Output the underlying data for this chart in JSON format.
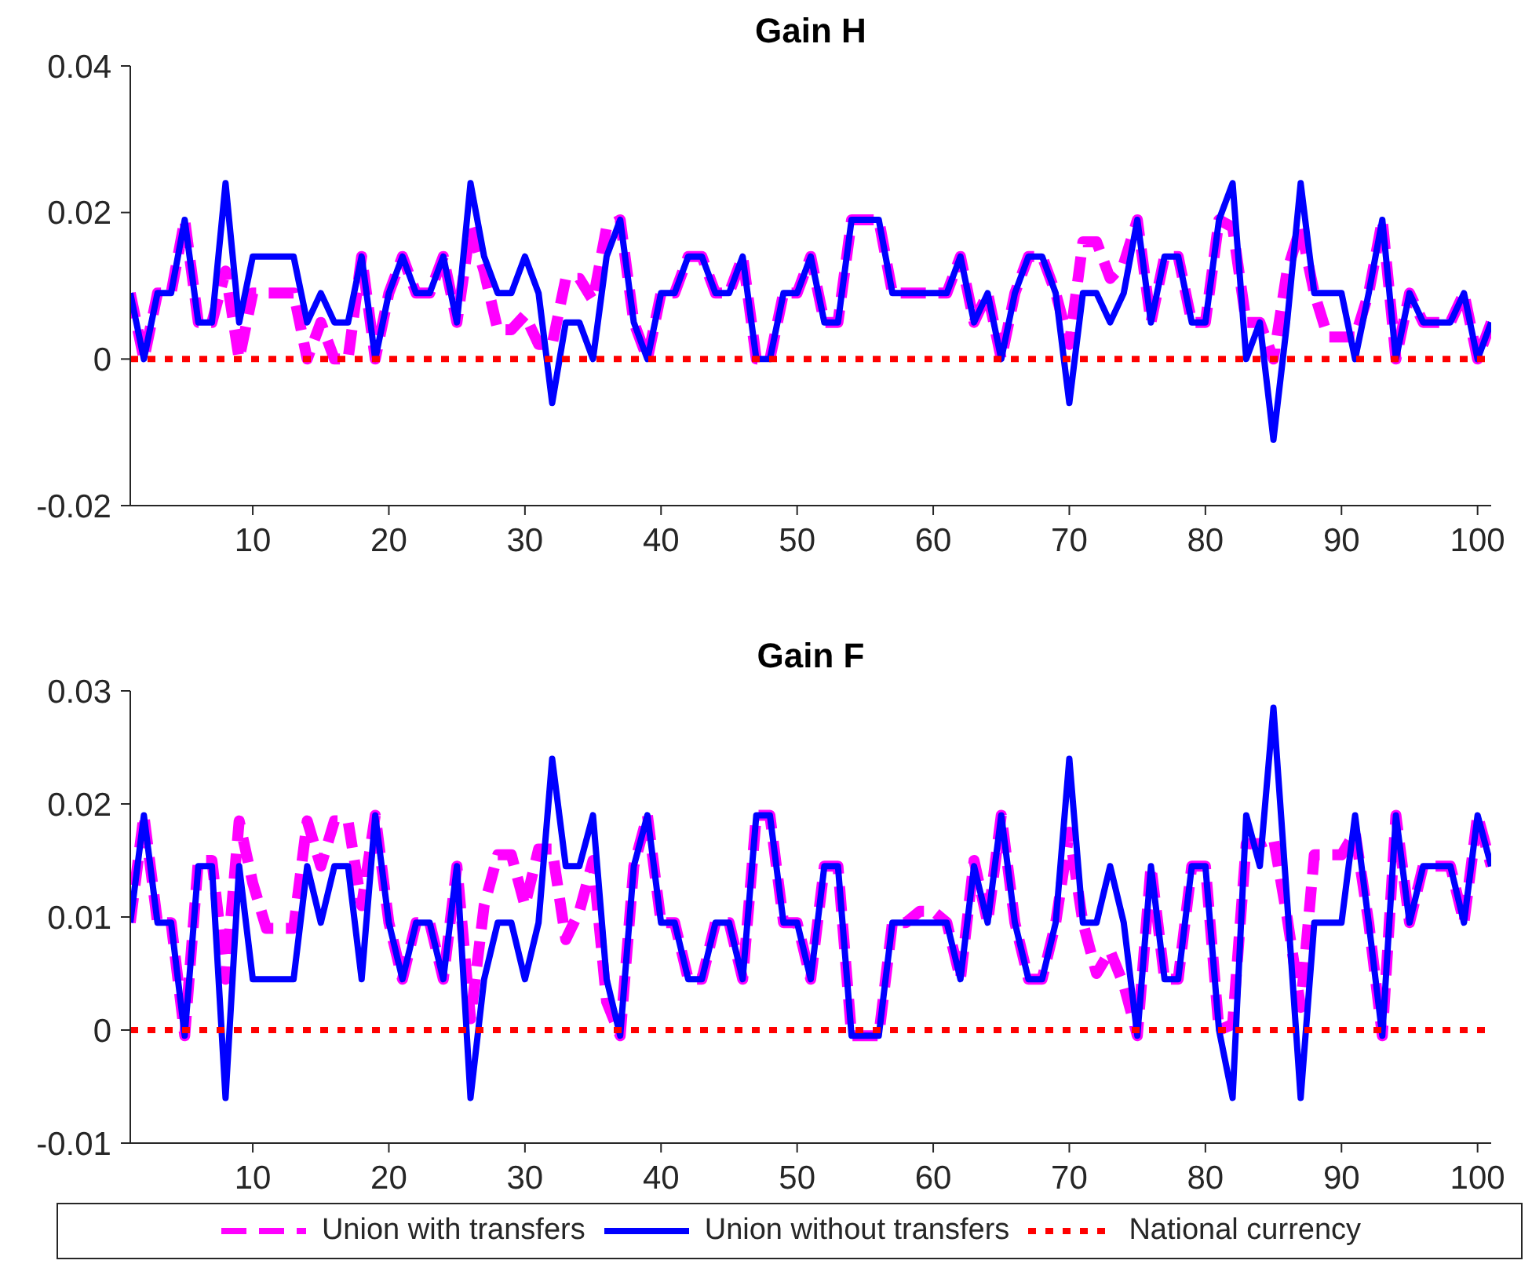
{
  "chart_data": [
    {
      "type": "line",
      "title": "Gain H",
      "legend": false,
      "grid": false,
      "marker": "none",
      "xlim": [
        1,
        101
      ],
      "xticks": [
        10,
        20,
        30,
        40,
        50,
        60,
        70,
        80,
        90,
        100
      ],
      "ylim": [
        -0.02,
        0.04
      ],
      "yticks": [
        -0.02,
        0,
        0.02,
        0.04
      ],
      "x": [
        1,
        2,
        3,
        4,
        5,
        6,
        7,
        8,
        9,
        10,
        11,
        12,
        13,
        14,
        15,
        16,
        17,
        18,
        19,
        20,
        21,
        22,
        23,
        24,
        25,
        26,
        27,
        28,
        29,
        30,
        31,
        32,
        33,
        34,
        35,
        36,
        37,
        38,
        39,
        40,
        41,
        42,
        43,
        44,
        45,
        46,
        47,
        48,
        49,
        50,
        51,
        52,
        53,
        54,
        55,
        56,
        57,
        58,
        59,
        60,
        61,
        62,
        63,
        64,
        65,
        66,
        67,
        68,
        69,
        70,
        71,
        72,
        73,
        74,
        75,
        76,
        77,
        78,
        79,
        80,
        81,
        82,
        83,
        84,
        85,
        86,
        87,
        88,
        89,
        90,
        91,
        92,
        93,
        94,
        95,
        96,
        97,
        98,
        99,
        100,
        101
      ],
      "series": [
        {
          "color": "#ff00ff",
          "line_style": "dashed",
          "values": [
            0.009,
            0,
            0.009,
            0.009,
            0.019,
            0.005,
            0.005,
            0.012,
            0,
            0.009,
            0.009,
            0.009,
            0.009,
            0,
            0.005,
            0,
            0,
            0.014,
            0,
            0.009,
            0.014,
            0.009,
            0.009,
            0.014,
            0.005,
            0.018,
            0.012,
            0.004,
            0.004,
            0.006,
            0.002,
            0.002,
            0.011,
            0.011,
            0.008,
            0.018,
            0.019,
            0.005,
            0,
            0.009,
            0.009,
            0.014,
            0.014,
            0.009,
            0.009,
            0.014,
            0,
            0,
            0.009,
            0.009,
            0.014,
            0.005,
            0.005,
            0.019,
            0.019,
            0.019,
            0.009,
            0.009,
            0.009,
            0.009,
            0.009,
            0.014,
            0.005,
            0.009,
            0,
            0.009,
            0.014,
            0.014,
            0.009,
            0.002,
            0.016,
            0.016,
            0.011,
            0.013,
            0.019,
            0.005,
            0.014,
            0.014,
            0.005,
            0.005,
            0.019,
            0.018,
            0.005,
            0.005,
            0,
            0.012,
            0.018,
            0.009,
            0.003,
            0.003,
            0.003,
            0.009,
            0.019,
            0,
            0.009,
            0.005,
            0.005,
            0.005,
            0.009,
            0,
            0.005
          ]
        },
        {
          "color": "#0000ff",
          "line_style": "solid",
          "values": [
            0.009,
            0,
            0.009,
            0.009,
            0.019,
            0.005,
            0.005,
            0.024,
            0.005,
            0.014,
            0.014,
            0.014,
            0.014,
            0.005,
            0.009,
            0.005,
            0.005,
            0.014,
            0,
            0.009,
            0.014,
            0.009,
            0.009,
            0.014,
            0.005,
            0.024,
            0.014,
            0.009,
            0.009,
            0.014,
            0.009,
            -0.006,
            0.005,
            0.005,
            0,
            0.014,
            0.019,
            0.005,
            0,
            0.009,
            0.009,
            0.014,
            0.014,
            0.009,
            0.009,
            0.014,
            0,
            0,
            0.009,
            0.009,
            0.014,
            0.005,
            0.005,
            0.019,
            0.019,
            0.019,
            0.009,
            0.009,
            0.009,
            0.009,
            0.009,
            0.014,
            0.005,
            0.009,
            0,
            0.009,
            0.014,
            0.014,
            0.009,
            -0.006,
            0.009,
            0.009,
            0.005,
            0.009,
            0.019,
            0.005,
            0.014,
            0.014,
            0.005,
            0.005,
            0.019,
            0.024,
            0,
            0.005,
            -0.011,
            0.005,
            0.024,
            0.009,
            0.009,
            0.009,
            0,
            0.009,
            0.019,
            0,
            0.009,
            0.005,
            0.005,
            0.005,
            0.009,
            0,
            0.005
          ]
        },
        {
          "color": "#ff0000",
          "line_style": "dotted",
          "values": [
            0,
            0,
            0,
            0,
            0,
            0,
            0,
            0,
            0,
            0,
            0,
            0,
            0,
            0,
            0,
            0,
            0,
            0,
            0,
            0,
            0,
            0,
            0,
            0,
            0,
            0,
            0,
            0,
            0,
            0,
            0,
            0,
            0,
            0,
            0,
            0,
            0,
            0,
            0,
            0,
            0,
            0,
            0,
            0,
            0,
            0,
            0,
            0,
            0,
            0,
            0,
            0,
            0,
            0,
            0,
            0,
            0,
            0,
            0,
            0,
            0,
            0,
            0,
            0,
            0,
            0,
            0,
            0,
            0,
            0,
            0,
            0,
            0,
            0,
            0,
            0,
            0,
            0,
            0,
            0,
            0,
            0,
            0,
            0,
            0,
            0,
            0,
            0,
            0,
            0,
            0,
            0,
            0,
            0,
            0,
            0,
            0,
            0,
            0,
            0,
            0
          ]
        }
      ]
    },
    {
      "type": "line",
      "title": "Gain F",
      "legend": "bottom",
      "grid": false,
      "marker": "none",
      "xlim": [
        1,
        101
      ],
      "xticks": [
        10,
        20,
        30,
        40,
        50,
        60,
        70,
        80,
        90,
        100
      ],
      "ylim": [
        -0.01,
        0.03
      ],
      "yticks": [
        -0.01,
        0,
        0.01,
        0.02,
        0.03
      ],
      "x": [
        1,
        2,
        3,
        4,
        5,
        6,
        7,
        8,
        9,
        10,
        11,
        12,
        13,
        14,
        15,
        16,
        17,
        18,
        19,
        20,
        21,
        22,
        23,
        24,
        25,
        26,
        27,
        28,
        29,
        30,
        31,
        32,
        33,
        34,
        35,
        36,
        37,
        38,
        39,
        40,
        41,
        42,
        43,
        44,
        45,
        46,
        47,
        48,
        49,
        50,
        51,
        52,
        53,
        54,
        55,
        56,
        57,
        58,
        59,
        60,
        61,
        62,
        63,
        64,
        65,
        66,
        67,
        68,
        69,
        70,
        71,
        72,
        73,
        74,
        75,
        76,
        77,
        78,
        79,
        80,
        81,
        82,
        83,
        84,
        85,
        86,
        87,
        88,
        89,
        90,
        91,
        92,
        93,
        94,
        95,
        96,
        97,
        98,
        99,
        100,
        101
      ],
      "series": [
        {
          "name": "Union with transfers",
          "color": "#ff00ff",
          "line_style": "dashed",
          "values": [
            0.0095,
            0.019,
            0.0095,
            0.0095,
            -0.0005,
            0.015,
            0.015,
            0.0045,
            0.0185,
            0.013,
            0.009,
            0.009,
            0.009,
            0.0185,
            0.0145,
            0.0185,
            0.0185,
            0.011,
            0.019,
            0.0095,
            0.0045,
            0.0095,
            0.0095,
            0.0045,
            0.0145,
            0.001,
            0.011,
            0.0155,
            0.0155,
            0.011,
            0.016,
            0.016,
            0.008,
            0.0105,
            0.015,
            0.0025,
            -0.0005,
            0.0145,
            0.019,
            0.0095,
            0.0095,
            0.0045,
            0.0045,
            0.0095,
            0.0095,
            0.0045,
            0.019,
            0.019,
            0.0095,
            0.0095,
            0.0045,
            0.0145,
            0.0145,
            -0.0005,
            -0.0005,
            -0.0005,
            0.0095,
            0.0095,
            0.0105,
            0.0105,
            0.0095,
            0.0045,
            0.015,
            0.0095,
            0.019,
            0.0095,
            0.0045,
            0.0045,
            0.0095,
            0.0175,
            0.0095,
            0.005,
            0.007,
            0.004,
            -0.0005,
            0.0145,
            0.0045,
            0.0045,
            0.0145,
            0.0145,
            0,
            0.0005,
            0.0165,
            0.0165,
            0.017,
            0.01,
            0.002,
            0.0155,
            0.0155,
            0.0155,
            0.0175,
            0.0095,
            -0.0005,
            0.019,
            0.0095,
            0.0145,
            0.0145,
            0.0145,
            0.0095,
            0.019,
            0.0145
          ]
        },
        {
          "name": "Union without transfers",
          "color": "#0000ff",
          "line_style": "solid",
          "values": [
            0.0095,
            0.019,
            0.0095,
            0.0095,
            -0.0005,
            0.0145,
            0.0145,
            -0.006,
            0.0145,
            0.0045,
            0.0045,
            0.0045,
            0.0045,
            0.0145,
            0.0095,
            0.0145,
            0.0145,
            0.0045,
            0.019,
            0.0095,
            0.0045,
            0.0095,
            0.0095,
            0.0045,
            0.0145,
            -0.006,
            0.0045,
            0.0095,
            0.0095,
            0.0045,
            0.0095,
            0.024,
            0.0145,
            0.0145,
            0.019,
            0.0045,
            -0.0005,
            0.0145,
            0.019,
            0.0095,
            0.0095,
            0.0045,
            0.0045,
            0.0095,
            0.0095,
            0.0045,
            0.019,
            0.019,
            0.0095,
            0.0095,
            0.0045,
            0.0145,
            0.0145,
            -0.0005,
            -0.0005,
            -0.0005,
            0.0095,
            0.0095,
            0.0095,
            0.0095,
            0.0095,
            0.0045,
            0.0145,
            0.0095,
            0.019,
            0.0095,
            0.0045,
            0.0045,
            0.0095,
            0.024,
            0.0095,
            0.0095,
            0.0145,
            0.0095,
            -0.0005,
            0.0145,
            0.0045,
            0.0045,
            0.0145,
            0.0145,
            0,
            -0.006,
            0.019,
            0.0145,
            0.0285,
            0.0115,
            -0.006,
            0.0095,
            0.0095,
            0.0095,
            0.019,
            0.0095,
            -0.0005,
            0.019,
            0.0095,
            0.0145,
            0.0145,
            0.0145,
            0.0095,
            0.019,
            0.0145
          ]
        },
        {
          "name": "National currency",
          "color": "#ff0000",
          "line_style": "dotted",
          "values": [
            0,
            0,
            0,
            0,
            0,
            0,
            0,
            0,
            0,
            0,
            0,
            0,
            0,
            0,
            0,
            0,
            0,
            0,
            0,
            0,
            0,
            0,
            0,
            0,
            0,
            0,
            0,
            0,
            0,
            0,
            0,
            0,
            0,
            0,
            0,
            0,
            0,
            0,
            0,
            0,
            0,
            0,
            0,
            0,
            0,
            0,
            0,
            0,
            0,
            0,
            0,
            0,
            0,
            0,
            0,
            0,
            0,
            0,
            0,
            0,
            0,
            0,
            0,
            0,
            0,
            0,
            0,
            0,
            0,
            0,
            0,
            0,
            0,
            0,
            0,
            0,
            0,
            0,
            0,
            0,
            0,
            0,
            0,
            0,
            0,
            0,
            0,
            0,
            0,
            0,
            0,
            0,
            0,
            0,
            0,
            0,
            0,
            0,
            0,
            0,
            0
          ]
        }
      ]
    }
  ]
}
